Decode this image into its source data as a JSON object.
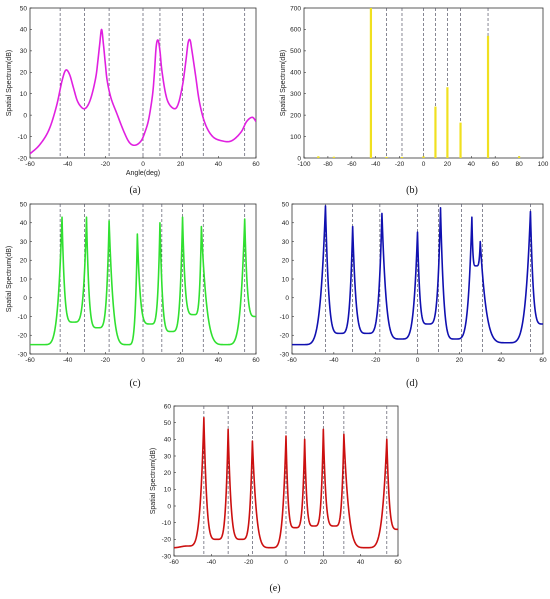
{
  "chart_data": [
    {
      "type": "line",
      "caption": "(a)",
      "xlabel": "Angle(deg)",
      "ylabel": "Spatial Spectrum(dB)",
      "xlim": [
        -60,
        60
      ],
      "ylim": [
        -20,
        50
      ],
      "xticks": [
        -60,
        -40,
        -20,
        0,
        20,
        40,
        60
      ],
      "yticks": [
        -20,
        -10,
        0,
        10,
        20,
        30,
        40,
        50
      ],
      "color": "#e020e0",
      "grid": false,
      "true_angles": [
        -44,
        -31,
        -18,
        0,
        9,
        21,
        32,
        54
      ],
      "series": [
        {
          "x": [
            -60,
            -55,
            -50,
            -46,
            -43,
            -41,
            -39,
            -37,
            -35,
            -33,
            -31,
            -29,
            -27,
            -25,
            -24,
            -23,
            -22,
            -21,
            -20,
            -19,
            -17,
            -14,
            -10,
            -7,
            -4,
            -1,
            1,
            3,
            5,
            6,
            7,
            8,
            9,
            10,
            12,
            14,
            17,
            19,
            21,
            22,
            23,
            24,
            25,
            26,
            28,
            30,
            33,
            37,
            42,
            47,
            52,
            55,
            58,
            60
          ],
          "y": [
            -18,
            -14,
            -7,
            4,
            16,
            21,
            19,
            13,
            7,
            4,
            3,
            5,
            10,
            18,
            25,
            33,
            40,
            33,
            24,
            16,
            8,
            1,
            -8,
            -13,
            -14,
            -12,
            -8,
            -2,
            9,
            19,
            32,
            35,
            30,
            21,
            10,
            5,
            3,
            6,
            14,
            20,
            27,
            34,
            35,
            30,
            18,
            6,
            -4,
            -10,
            -12,
            -12,
            -8,
            -3,
            -1,
            -3
          ]
        }
      ]
    },
    {
      "type": "bar",
      "caption": "(b)",
      "xlabel": "",
      "ylabel": "Spatial Spectrum(dB)",
      "xlim": [
        -100,
        100
      ],
      "ylim": [
        0,
        700
      ],
      "xticks": [
        -100,
        -80,
        -60,
        -40,
        -20,
        0,
        20,
        40,
        60,
        80,
        100
      ],
      "yticks": [
        0,
        100,
        200,
        300,
        400,
        500,
        600,
        700
      ],
      "color": "#f0e020",
      "grid": false,
      "true_angles": [
        -44,
        -31,
        -18,
        0,
        10,
        20,
        31,
        54
      ],
      "series": [
        {
          "x": [
            -88,
            -75,
            -44,
            -31,
            -18,
            0,
            10,
            20,
            31,
            54,
            80
          ],
          "y": [
            8,
            6,
            700,
            5,
            5,
            8,
            240,
            330,
            165,
            570,
            8
          ]
        }
      ]
    },
    {
      "type": "line",
      "caption": "(c)",
      "xlabel": "",
      "ylabel": "Spatial Spectrum(dB)",
      "xlim": [
        -60,
        60
      ],
      "ylim": [
        -30,
        50
      ],
      "xticks": [
        -60,
        -40,
        -20,
        0,
        20,
        40,
        60
      ],
      "yticks": [
        -30,
        -20,
        -10,
        0,
        10,
        20,
        30,
        40,
        50
      ],
      "color": "#30e030",
      "grid": false,
      "true_angles": [
        -44,
        -31,
        -18,
        0,
        10,
        21,
        32,
        54
      ],
      "peaks": [
        [
          -43,
          43
        ],
        [
          -30,
          43
        ],
        [
          -18,
          41
        ],
        [
          -3,
          34
        ],
        [
          9,
          40
        ],
        [
          21,
          43
        ],
        [
          31,
          38
        ],
        [
          54,
          42
        ]
      ],
      "valleys": [
        [
          -60,
          -25
        ],
        [
          -53,
          -25
        ],
        [
          -37,
          -13
        ],
        [
          -24,
          -16
        ],
        [
          -8,
          -25
        ],
        [
          4,
          -14
        ],
        [
          15,
          -18
        ],
        [
          27,
          -9
        ],
        [
          44,
          -25
        ],
        [
          60,
          -10
        ]
      ]
    },
    {
      "type": "line",
      "caption": "(d)",
      "xlabel": "",
      "ylabel": "",
      "xlim": [
        -60,
        60
      ],
      "ylim": [
        -30,
        50
      ],
      "xticks": [
        -60,
        -40,
        -20,
        0,
        20,
        40,
        60
      ],
      "yticks": [
        -30,
        -20,
        -10,
        0,
        10,
        20,
        30,
        40,
        50
      ],
      "color": "#1010b0",
      "grid": false,
      "true_angles": [
        -44,
        -31,
        -18,
        0,
        10,
        21,
        31,
        54
      ],
      "peaks": [
        [
          -44,
          49
        ],
        [
          -31,
          38
        ],
        [
          -17,
          45
        ],
        [
          0,
          35
        ],
        [
          11,
          48
        ],
        [
          26,
          43
        ],
        [
          30,
          30
        ],
        [
          54,
          46
        ]
      ],
      "valleys": [
        [
          -60,
          -25
        ],
        [
          -55,
          -25
        ],
        [
          -37,
          -19
        ],
        [
          -24,
          -19
        ],
        [
          -8,
          -22
        ],
        [
          5,
          -14
        ],
        [
          18,
          -22
        ],
        [
          28,
          17
        ],
        [
          43,
          -24
        ],
        [
          60,
          -14
        ]
      ]
    },
    {
      "type": "line",
      "caption": "(e)",
      "xlabel": "",
      "ylabel": "Spatial Spectrum(dB)",
      "xlim": [
        -60,
        60
      ],
      "ylim": [
        -30,
        60
      ],
      "xticks": [
        -60,
        -40,
        -20,
        0,
        20,
        40,
        60
      ],
      "yticks": [
        -30,
        -20,
        -10,
        0,
        10,
        20,
        30,
        40,
        50,
        60
      ],
      "color": "#cc1010",
      "grid": false,
      "true_angles": [
        -44,
        -31,
        -18,
        0,
        10,
        20,
        31,
        54
      ],
      "peaks": [
        [
          -44,
          53
        ],
        [
          -31,
          46
        ],
        [
          -18,
          39
        ],
        [
          0,
          42
        ],
        [
          10,
          40
        ],
        [
          20,
          46
        ],
        [
          31,
          43
        ],
        [
          54,
          40
        ]
      ],
      "valleys": [
        [
          -60,
          -25
        ],
        [
          -53,
          -24
        ],
        [
          -37,
          -20
        ],
        [
          -24,
          -20
        ],
        [
          -8,
          -25
        ],
        [
          5,
          -13
        ],
        [
          15,
          -12
        ],
        [
          26,
          -12
        ],
        [
          43,
          -25
        ],
        [
          60,
          -14
        ]
      ]
    }
  ]
}
